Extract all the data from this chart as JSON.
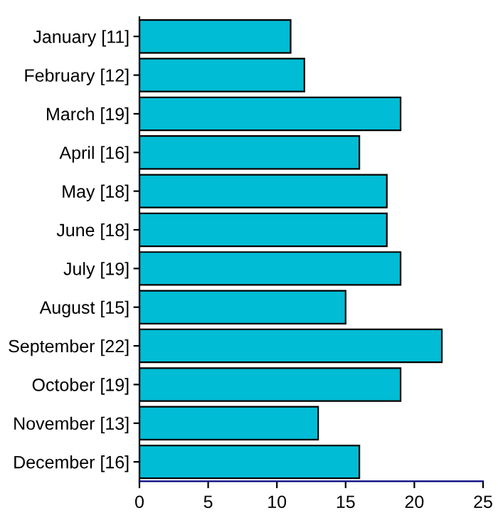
{
  "chart_data": {
    "type": "bar",
    "orientation": "horizontal",
    "categories": [
      "January [11]",
      "February [12]",
      "March [19]",
      "April [16]",
      "May [18]",
      "June [18]",
      "July [19]",
      "August [15]",
      "September [22]",
      "October [19]",
      "November [13]",
      "December [16]"
    ],
    "values": [
      11,
      12,
      19,
      16,
      18,
      18,
      19,
      15,
      22,
      19,
      13,
      16
    ],
    "color": "#00bcd4",
    "xlim": [
      0,
      25
    ],
    "xticks": [
      0,
      5,
      10,
      15,
      20,
      25
    ],
    "grid": false,
    "legend": false
  }
}
